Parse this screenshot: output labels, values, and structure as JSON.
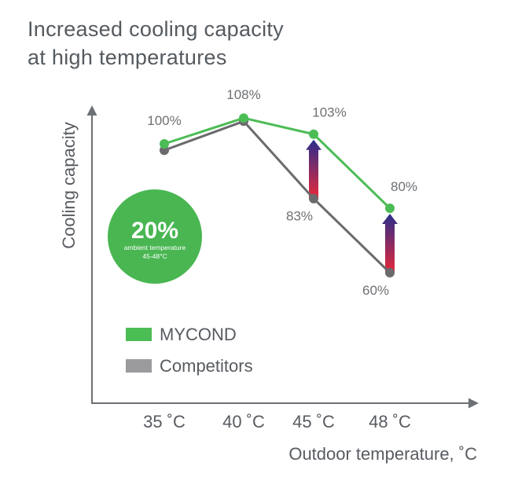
{
  "title_lines": [
    "Increased cooling capacity",
    "at high temperatures"
  ],
  "badge": {
    "value": "20%",
    "line1": "ambient temperature",
    "line2": "45-48°C",
    "color": "#49b652"
  },
  "colors": {
    "mycond": "#4cbc55",
    "competitors": "#6b6b6e",
    "competitors_legend": "#9b9b9e",
    "axis": "#6d7074",
    "text": "#575b60",
    "arrow_top": "#2a2e8c",
    "arrow_bottom": "#e8283a"
  },
  "chart_data": {
    "type": "line",
    "title": "Increased cooling capacity at high temperatures",
    "xlabel": "Outdoor temperature, ˚C",
    "ylabel": "Cooling capacity",
    "categories": [
      "35 ˚C",
      "40 ˚C",
      "45 ˚C",
      "48 ˚C"
    ],
    "x": [
      35,
      40,
      45,
      48
    ],
    "series": [
      {
        "name": "MYCOND",
        "color": "#4cbc55",
        "values": [
          100,
          108,
          103,
          80
        ],
        "labels": [
          "100%",
          "108%",
          "103%",
          "80%"
        ]
      },
      {
        "name": "Competitors",
        "color": "#6b6b6e",
        "values": [
          98,
          107,
          83,
          60
        ],
        "labels": [
          "",
          "",
          "83%",
          "60%"
        ]
      }
    ],
    "ylim": [
      35,
      115
    ],
    "grid": false,
    "legend": "bottom-left",
    "annotations": [
      "arrow from Competitors to MYCOND at 45 ˚C",
      "arrow from Competitors to MYCOND at 48 ˚C"
    ]
  }
}
